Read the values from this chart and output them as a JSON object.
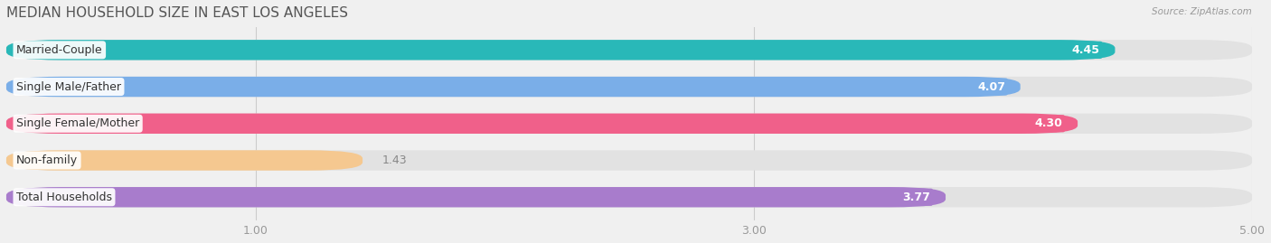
{
  "title": "MEDIAN HOUSEHOLD SIZE IN EAST LOS ANGELES",
  "source": "Source: ZipAtlas.com",
  "categories": [
    "Married-Couple",
    "Single Male/Father",
    "Single Female/Mother",
    "Non-family",
    "Total Households"
  ],
  "values": [
    4.45,
    4.07,
    4.3,
    1.43,
    3.77
  ],
  "bar_colors": [
    "#29b8b8",
    "#7aaee8",
    "#f0608a",
    "#f5c890",
    "#a87ccc"
  ],
  "xmin": 0,
  "xmax": 5.0,
  "xticks": [
    1.0,
    3.0,
    5.0
  ],
  "background_color": "#f0f0f0",
  "bar_bg_color": "#e2e2e2",
  "title_fontsize": 11,
  "label_fontsize": 9,
  "value_fontsize": 9
}
